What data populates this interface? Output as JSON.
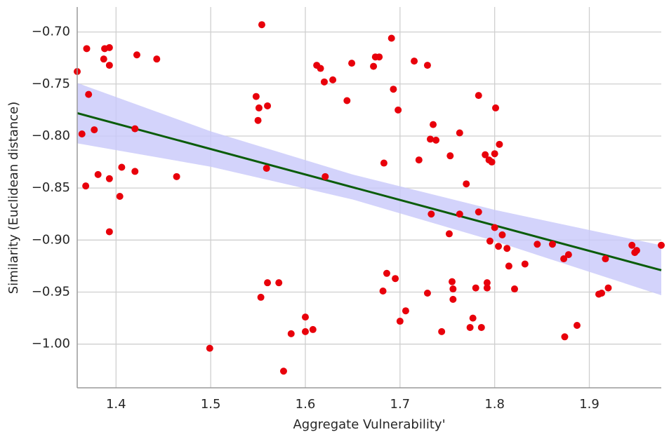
{
  "chart_data": {
    "type": "scatter",
    "xlabel": "Aggregate Vulnerability'",
    "ylabel": "Similarity (Euclidean distance)",
    "xlim": [
      1.359,
      1.976
    ],
    "ylim": [
      -1.042,
      -0.676
    ],
    "xticks": [
      1.4,
      1.5,
      1.6,
      1.7,
      1.8,
      1.9
    ],
    "yticks": [
      {
        "value": -0.7,
        "label": "−0.70"
      },
      {
        "value": -0.75,
        "label": "−0.75"
      },
      {
        "value": -0.8,
        "label": "−0.80"
      },
      {
        "value": -0.85,
        "label": "−0.85"
      },
      {
        "value": -0.9,
        "label": "−0.90"
      },
      {
        "value": -0.95,
        "label": "−0.95"
      },
      {
        "value": -1.0,
        "label": "−1.00"
      }
    ],
    "grid": true,
    "series": [
      {
        "color": "#e8000b",
        "x": [
          1.359,
          1.369,
          1.371,
          1.364,
          1.377,
          1.368,
          1.381,
          1.388,
          1.393,
          1.387,
          1.393,
          1.393,
          1.393,
          1.406,
          1.404,
          1.422,
          1.42,
          1.42,
          1.443,
          1.464,
          1.499,
          1.554,
          1.548,
          1.551,
          1.55,
          1.56,
          1.559,
          1.553,
          1.56,
          1.572,
          1.577,
          1.585,
          1.6,
          1.6,
          1.608,
          1.612,
          1.616,
          1.62,
          1.629,
          1.621,
          1.644,
          1.649,
          1.672,
          1.674,
          1.678,
          1.691,
          1.693,
          1.698,
          1.683,
          1.686,
          1.682,
          1.695,
          1.7,
          1.706,
          1.715,
          1.729,
          1.72,
          1.732,
          1.735,
          1.738,
          1.733,
          1.729,
          1.744,
          1.752,
          1.753,
          1.755,
          1.756,
          1.756,
          1.763,
          1.763,
          1.77,
          1.774,
          1.777,
          1.78,
          1.783,
          1.783,
          1.786,
          1.79,
          1.794,
          1.797,
          1.8,
          1.801,
          1.805,
          1.792,
          1.792,
          1.795,
          1.8,
          1.804,
          1.808,
          1.813,
          1.815,
          1.821,
          1.832,
          1.845,
          1.861,
          1.873,
          1.878,
          1.874,
          1.887,
          1.91,
          1.913,
          1.917,
          1.92,
          1.945,
          1.95,
          1.948,
          1.976
        ],
        "values": [
          -0.738,
          -0.716,
          -0.76,
          -0.798,
          -0.794,
          -0.848,
          -0.837,
          -0.716,
          -0.715,
          -0.726,
          -0.732,
          -0.841,
          -0.892,
          -0.83,
          -0.858,
          -0.722,
          -0.793,
          -0.834,
          -0.726,
          -0.839,
          -1.004,
          -0.693,
          -0.762,
          -0.773,
          -0.785,
          -0.771,
          -0.831,
          -0.955,
          -0.941,
          -0.941,
          -1.026,
          -0.99,
          -0.974,
          -0.988,
          -0.986,
          -0.732,
          -0.735,
          -0.748,
          -0.746,
          -0.839,
          -0.766,
          -0.73,
          -0.733,
          -0.724,
          -0.724,
          -0.706,
          -0.755,
          -0.775,
          -0.826,
          -0.932,
          -0.949,
          -0.937,
          -0.978,
          -0.968,
          -0.728,
          -0.732,
          -0.823,
          -0.803,
          -0.789,
          -0.804,
          -0.875,
          -0.951,
          -0.988,
          -0.894,
          -0.819,
          -0.94,
          -0.947,
          -0.957,
          -0.797,
          -0.875,
          -0.846,
          -0.984,
          -0.975,
          -0.946,
          -0.761,
          -0.873,
          -0.984,
          -0.818,
          -0.823,
          -0.825,
          -0.817,
          -0.773,
          -0.808,
          -0.941,
          -0.946,
          -0.901,
          -0.888,
          -0.906,
          -0.895,
          -0.908,
          -0.925,
          -0.947,
          -0.923,
          -0.904,
          -0.904,
          -0.918,
          -0.914,
          -0.993,
          -0.982,
          -0.952,
          -0.951,
          -0.918,
          -0.946,
          -0.905,
          -0.91,
          -0.912,
          -0.905
        ]
      }
    ],
    "fit": {
      "color": "#0a5c0a",
      "x": [
        1.359,
        1.976
      ],
      "y": [
        -0.778,
        -0.929
      ]
    },
    "band": {
      "color": "#c8c8fa",
      "x": [
        1.359,
        1.5,
        1.65,
        1.8,
        1.976
      ],
      "upper": [
        -0.749,
        -0.7955,
        -0.837,
        -0.871,
        -0.905
      ],
      "lower": [
        -0.807,
        -0.8295,
        -0.861,
        -0.901,
        -0.953
      ]
    }
  }
}
